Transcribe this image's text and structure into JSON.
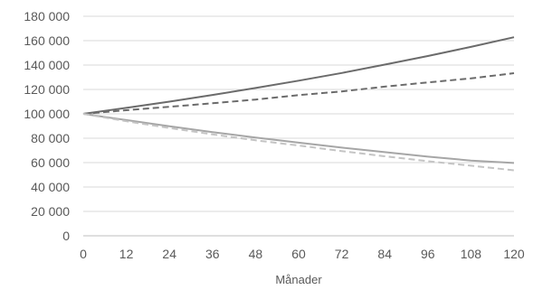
{
  "chart_data": {
    "type": "line",
    "title": "",
    "xlabel": "Månader",
    "ylabel": "",
    "xlim": [
      0,
      120
    ],
    "ylim": [
      0,
      180000
    ],
    "x_ticks": [
      0,
      12,
      24,
      36,
      48,
      60,
      72,
      84,
      96,
      108,
      120
    ],
    "x_tick_labels": [
      "0",
      "12",
      "24",
      "36",
      "48",
      "60",
      "72",
      "84",
      "96",
      "108",
      "120"
    ],
    "y_ticks": [
      0,
      20000,
      40000,
      60000,
      80000,
      100000,
      120000,
      140000,
      160000,
      180000
    ],
    "y_tick_labels": [
      "0",
      "20 000",
      "40 000",
      "60 000",
      "80 000",
      "100 000",
      "120 000",
      "140 000",
      "160 000",
      "180 000"
    ],
    "grid": "horizontal",
    "legend": "none",
    "series": [
      {
        "style": "solid",
        "color": "#6b6b6b",
        "x": [
          0,
          12,
          24,
          36,
          48,
          60,
          72,
          84,
          96,
          108,
          120
        ],
        "values": [
          100000,
          104900,
          110000,
          115500,
          121200,
          127200,
          133500,
          140400,
          147400,
          154900,
          162800
        ]
      },
      {
        "style": "dashed",
        "color": "#6b6b6b",
        "x": [
          0,
          12,
          24,
          36,
          48,
          60,
          72,
          84,
          96,
          108,
          120
        ],
        "values": [
          100000,
          103000,
          105800,
          108700,
          111700,
          115300,
          118400,
          122300,
          125800,
          129000,
          133300
        ]
      },
      {
        "style": "solid",
        "color": "#a6a6a6",
        "x": [
          0,
          12,
          24,
          36,
          48,
          60,
          72,
          84,
          96,
          108,
          120
        ],
        "values": [
          100000,
          94900,
          89800,
          85000,
          80600,
          76400,
          72300,
          68600,
          64900,
          61700,
          59700
        ]
      },
      {
        "style": "dashed",
        "color": "#c4c4c4",
        "x": [
          0,
          12,
          24,
          36,
          48,
          60,
          72,
          84,
          96,
          108,
          120
        ],
        "values": [
          100000,
          93900,
          88400,
          83200,
          78300,
          74000,
          69500,
          65200,
          61200,
          57500,
          53700
        ]
      }
    ]
  }
}
